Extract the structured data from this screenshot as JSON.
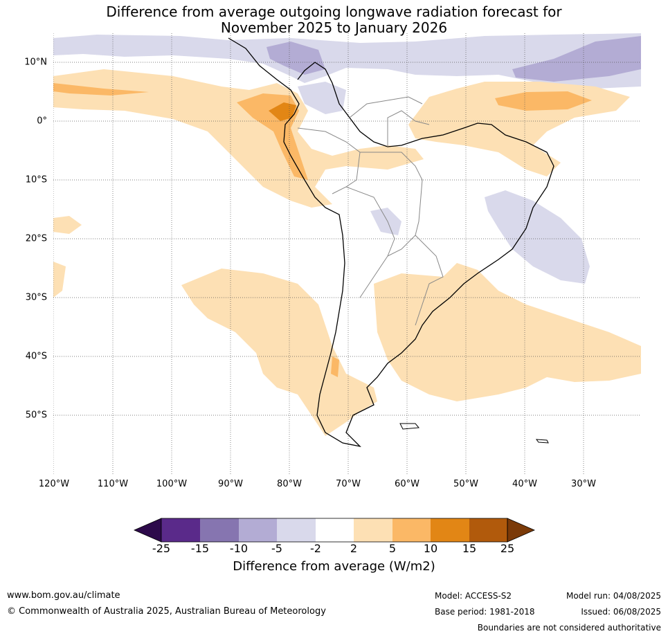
{
  "title_line1": "Difference from average outgoing longwave radiation forecast for",
  "title_line2": "November 2025 to January 2026",
  "longitude_labels": [
    "120°W",
    "110°W",
    "100°W",
    "90°W",
    "80°W",
    "70°W",
    "60°W",
    "50°W",
    "40°W",
    "30°W"
  ],
  "latitude_labels": [
    "10°N",
    "0°",
    "10°S",
    "20°S",
    "30°S",
    "40°S",
    "50°S"
  ],
  "colorbar": {
    "ticks": [
      "-25",
      "-15",
      "-10",
      "-5",
      "-2",
      "2",
      "5",
      "10",
      "15",
      "25"
    ],
    "colors": [
      "#2d0a4b",
      "#5a2a8a",
      "#8675b0",
      "#b3acd4",
      "#d9d9eb",
      "#ffffff",
      "#fde0b4",
      "#fbb866",
      "#e28615",
      "#b15a0c",
      "#7b3a08"
    ],
    "label": "Difference from average (W/m2)"
  },
  "footer": {
    "website": "www.bom.gov.au/climate",
    "copyright": "© Commonwealth of Australia 2025, Australian Bureau of Meteorology",
    "model": "Model: ACCESS-S2",
    "base_period": "Base period: 1981-2018",
    "model_run": "Model run: 04/08/2025",
    "issued": "Issued: 06/08/2025",
    "disclaimer": "Boundaries are not considered authoritative"
  }
}
